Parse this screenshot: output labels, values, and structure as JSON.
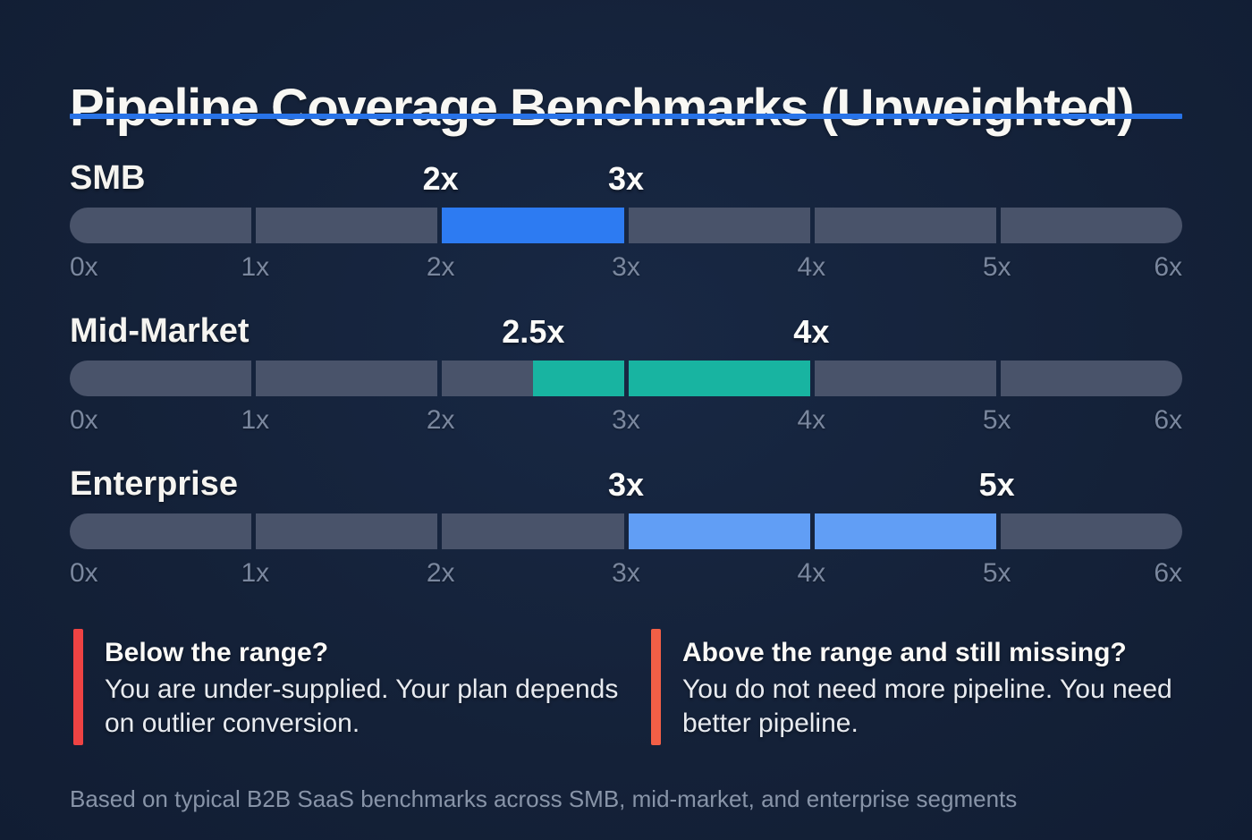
{
  "chart_data": {
    "type": "range-bar",
    "title": "Pipeline Coverage Benchmarks (Unweighted)",
    "axis": {
      "min": 0,
      "max": 6,
      "segments": 6,
      "tick_labels": [
        "0x",
        "1x",
        "2x",
        "3x",
        "4x",
        "5x",
        "6x"
      ]
    },
    "rows": [
      {
        "label": "SMB",
        "range": [
          2,
          3
        ],
        "range_labels": [
          "2x",
          "3x"
        ],
        "color": "#2d7bf2"
      },
      {
        "label": "Mid-Market",
        "range": [
          2.5,
          4
        ],
        "range_labels": [
          "2.5x",
          "4x"
        ],
        "color": "#18b4a1"
      },
      {
        "label": "Enterprise",
        "range": [
          3,
          5
        ],
        "range_labels": [
          "3x",
          "5x"
        ],
        "color": "#619ef5"
      }
    ],
    "track_color": "#49536a",
    "grid": false,
    "legend_position": "none"
  },
  "callouts": [
    {
      "heading": "Below the range?",
      "body": "You are under-supplied. Your plan depends on outlier conversion.",
      "accent_color": "#ee4343"
    },
    {
      "heading": "Above the range and still missing?",
      "body": "You do not need more pipeline. You need better pipeline.",
      "accent_color": "#f25f46"
    }
  ],
  "footer": "Based on typical B2B SaaS benchmarks across SMB, mid-market, and enterprise segments",
  "colors": {
    "background": "#142138",
    "title_underline": "#2873e8",
    "tick_label": "#7a879e",
    "footer_text": "#8894a8"
  }
}
